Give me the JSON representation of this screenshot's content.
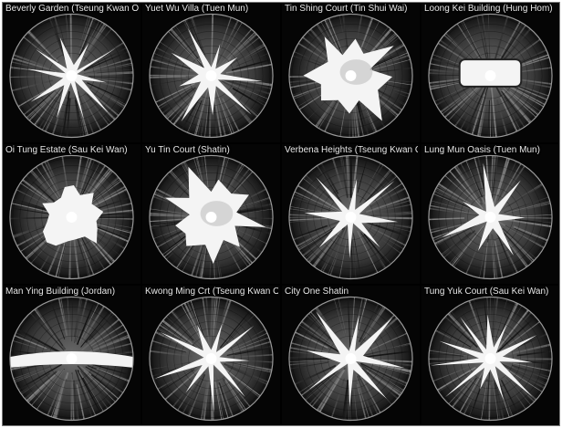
{
  "colors": {
    "background": "#000000",
    "sky": "#f4f4f4",
    "buildings_dark": "#1a1a1a",
    "buildings_mid": "#5a5a5a",
    "caption_text": "#e8e8e8"
  },
  "grid": {
    "rows": 3,
    "columns": 4
  },
  "photos": [
    {
      "caption": "Beverly Garden (Tseung Kwan O)",
      "sky_shape": "star"
    },
    {
      "caption": "Yuet Wu Villa (Tuen Mun)",
      "sky_shape": "star"
    },
    {
      "caption": "Tin Shing Court (Tin Shui Wai)",
      "sky_shape": "wide"
    },
    {
      "caption": "Loong Kei Building (Hung Hom)",
      "sky_shape": "narrow-strip"
    },
    {
      "caption": "Oi Tung Estate (Sau Kei Wan)",
      "sky_shape": "blob"
    },
    {
      "caption": "Yu Tin Court (Shatin)",
      "sky_shape": "wide"
    },
    {
      "caption": "Verbena Heights (Tseung Kwan O)",
      "sky_shape": "star"
    },
    {
      "caption": "Lung Mun Oasis (Tuen Mun)",
      "sky_shape": "star"
    },
    {
      "caption": "Man Ying Building (Jordan)",
      "sky_shape": "horizontal-strip"
    },
    {
      "caption": "Kwong Ming Crt (Tseung Kwan O)",
      "sky_shape": "star"
    },
    {
      "caption": "City One Shatin",
      "sky_shape": "star"
    },
    {
      "caption": "Tung Yuk Court (Sau Kei Wan)",
      "sky_shape": "star"
    }
  ]
}
